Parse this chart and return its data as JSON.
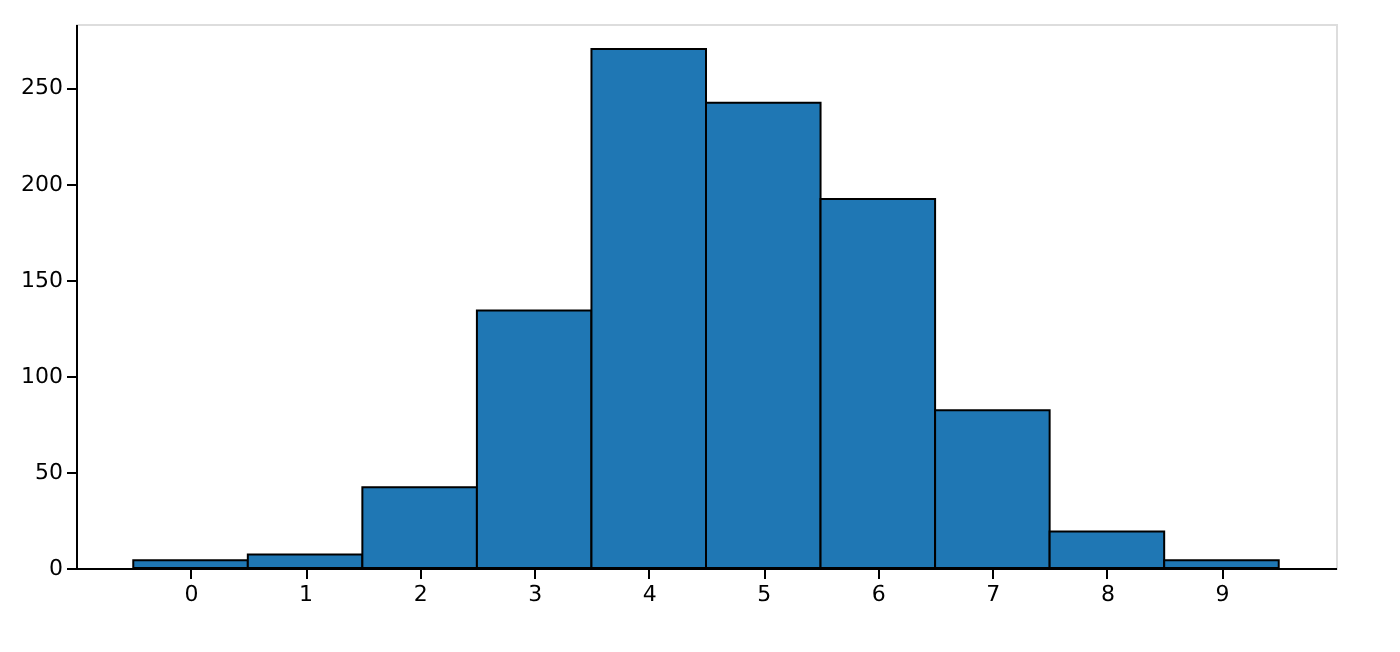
{
  "chart_data": {
    "type": "histogram",
    "bins": [
      -0.5,
      0.5,
      1.5,
      2.5,
      3.5,
      4.5,
      5.5,
      6.5,
      7.5,
      8.5,
      9.5
    ],
    "values": [
      4,
      7,
      42,
      134,
      270,
      242,
      192,
      82,
      19,
      4
    ],
    "color": "#1f77b4",
    "xlim": [
      -1,
      10
    ],
    "xticks": [
      0,
      1,
      2,
      3,
      4,
      5,
      6,
      7,
      8,
      9
    ],
    "ylim": [
      0,
      283
    ],
    "yticks": [
      0,
      50,
      100,
      150,
      200,
      250
    ],
    "grid": false
  }
}
